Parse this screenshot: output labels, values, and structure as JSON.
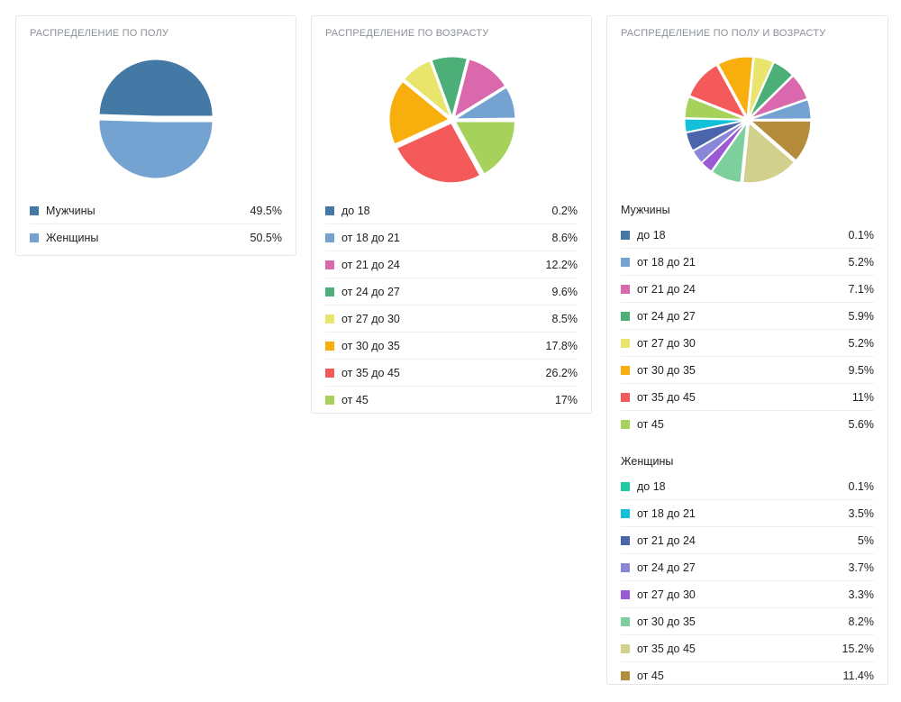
{
  "cards": [
    {
      "id": "gender",
      "title": "Распределение по полу",
      "chart_data": {
        "type": "pie",
        "title": "Распределение по полу",
        "unit": "%",
        "groups": [
          {
            "name": "",
            "slices": [
              {
                "label": "Мужчины",
                "value": 49.5,
                "display": "49.5%",
                "color": "#4479a6"
              },
              {
                "label": "Женщины",
                "value": 50.5,
                "display": "50.5%",
                "color": "#74a3d2"
              }
            ]
          }
        ]
      }
    },
    {
      "id": "age",
      "title": "Распределение по возрасту",
      "chart_data": {
        "type": "pie",
        "title": "Распределение по возрасту",
        "unit": "%",
        "groups": [
          {
            "name": "",
            "slices": [
              {
                "label": "до 18",
                "value": 0.2,
                "display": "0.2%",
                "color": "#4479a6"
              },
              {
                "label": "от 18 до 21",
                "value": 8.6,
                "display": "8.6%",
                "color": "#74a3d2"
              },
              {
                "label": "от 21 до 24",
                "value": 12.2,
                "display": "12.2%",
                "color": "#d968ac"
              },
              {
                "label": "от 24 до 27",
                "value": 9.6,
                "display": "9.6%",
                "color": "#4caf78"
              },
              {
                "label": "от 27 до 30",
                "value": 8.5,
                "display": "8.5%",
                "color": "#e8e46c"
              },
              {
                "label": "от 30 до 35",
                "value": 17.8,
                "display": "17.8%",
                "color": "#f8ae0c"
              },
              {
                "label": "от 35 до 45",
                "value": 26.2,
                "display": "26.2%",
                "color": "#f55a5a"
              },
              {
                "label": "от 45",
                "value": 17,
                "display": "17%",
                "color": "#a6d15a"
              }
            ]
          }
        ]
      }
    },
    {
      "id": "gender-age",
      "title": "Распределение по полу и возрасту",
      "chart_data": {
        "type": "pie",
        "title": "Распределение по полу и возрасту",
        "unit": "%",
        "groups": [
          {
            "name": "Мужчины",
            "slices": [
              {
                "label": "до 18",
                "value": 0.1,
                "display": "0.1%",
                "color": "#4479a6"
              },
              {
                "label": "от 18 до 21",
                "value": 5.2,
                "display": "5.2%",
                "color": "#74a3d2"
              },
              {
                "label": "от 21 до 24",
                "value": 7.1,
                "display": "7.1%",
                "color": "#d968ac"
              },
              {
                "label": "от 24 до 27",
                "value": 5.9,
                "display": "5.9%",
                "color": "#4caf78"
              },
              {
                "label": "от 27 до 30",
                "value": 5.2,
                "display": "5.2%",
                "color": "#e8e46c"
              },
              {
                "label": "от 30 до 35",
                "value": 9.5,
                "display": "9.5%",
                "color": "#f8ae0c"
              },
              {
                "label": "от 35 до 45",
                "value": 11,
                "display": "11%",
                "color": "#f55a5a"
              },
              {
                "label": "от 45",
                "value": 5.6,
                "display": "5.6%",
                "color": "#a6d15a"
              }
            ]
          },
          {
            "name": "Женщины",
            "slices": [
              {
                "label": "до 18",
                "value": 0.1,
                "display": "0.1%",
                "color": "#1ec9a3"
              },
              {
                "label": "от 18 до 21",
                "value": 3.5,
                "display": "3.5%",
                "color": "#13c0da"
              },
              {
                "label": "от 21 до 24",
                "value": 5,
                "display": "5%",
                "color": "#4b65ad"
              },
              {
                "label": "от 24 до 27",
                "value": 3.7,
                "display": "3.7%",
                "color": "#8a86d8"
              },
              {
                "label": "от 27 до 30",
                "value": 3.3,
                "display": "3.3%",
                "color": "#9b59d4"
              },
              {
                "label": "от 30 до 35",
                "value": 8.2,
                "display": "8.2%",
                "color": "#7ecf9e"
              },
              {
                "label": "от 35 до 45",
                "value": 15.2,
                "display": "15.2%",
                "color": "#d2d08d"
              },
              {
                "label": "от 45",
                "value": 11.4,
                "display": "11.4%",
                "color": "#b48c3c"
              }
            ]
          }
        ]
      }
    }
  ]
}
